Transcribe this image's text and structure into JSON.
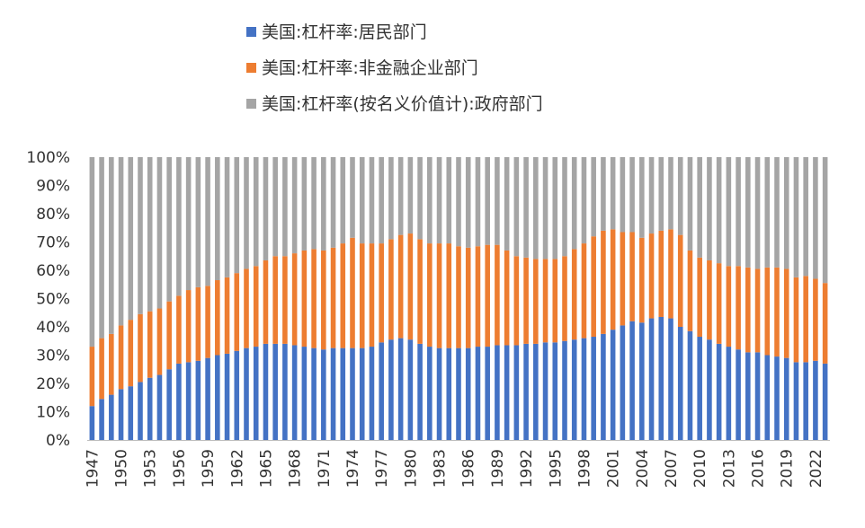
{
  "chart_data": {
    "type": "bar",
    "stacked": true,
    "stack_mode": "percent",
    "x": [
      1947,
      1948,
      1949,
      1950,
      1951,
      1952,
      1953,
      1954,
      1955,
      1956,
      1957,
      1958,
      1959,
      1960,
      1961,
      1962,
      1963,
      1964,
      1965,
      1966,
      1967,
      1968,
      1969,
      1970,
      1971,
      1972,
      1973,
      1974,
      1975,
      1976,
      1977,
      1978,
      1979,
      1980,
      1981,
      1982,
      1983,
      1984,
      1985,
      1986,
      1987,
      1988,
      1989,
      1990,
      1991,
      1992,
      1993,
      1994,
      1995,
      1996,
      1997,
      1998,
      1999,
      2000,
      2001,
      2002,
      2003,
      2004,
      2005,
      2006,
      2007,
      2008,
      2009,
      2010,
      2011,
      2012,
      2013,
      2014,
      2015,
      2016,
      2017,
      2018,
      2019,
      2020,
      2021,
      2022,
      2023
    ],
    "x_tick_labels": [
      "1947",
      "1950",
      "1953",
      "1956",
      "1959",
      "1962",
      "1965",
      "1968",
      "1971",
      "1974",
      "1977",
      "1980",
      "1983",
      "1986",
      "1989",
      "1992",
      "1995",
      "1998",
      "2001",
      "2004",
      "2007",
      "2010",
      "2013",
      "2016",
      "2019",
      "2022"
    ],
    "series": [
      {
        "name": "美国:杠杆率:居民部门",
        "color": "#4472C4",
        "values": [
          12,
          14.5,
          16,
          18,
          19,
          20.5,
          22,
          23,
          25,
          27,
          27.5,
          28,
          29,
          30,
          30.5,
          31.5,
          32.5,
          33,
          34,
          34,
          34,
          33.5,
          33,
          32.5,
          32,
          32.5,
          32.5,
          32.5,
          32.5,
          33,
          34.5,
          35.5,
          36,
          35.5,
          34,
          33,
          32.5,
          32.5,
          32.5,
          32.5,
          33,
          33,
          33.5,
          33.5,
          33.5,
          34,
          34,
          34.5,
          34.5,
          35,
          35.5,
          36,
          36.5,
          37.5,
          39,
          40.5,
          42,
          41.5,
          43,
          43.5,
          43,
          40,
          38.5,
          36.5,
          35.5,
          34,
          33,
          32,
          31,
          31,
          30,
          29.5,
          29,
          27.5,
          27.5,
          28,
          27
        ]
      },
      {
        "name": "美国:杠杆率:非金融企业部门",
        "color": "#ED7D31",
        "values": [
          21,
          21.5,
          21.5,
          22.5,
          23.5,
          24,
          23.5,
          23.5,
          24,
          24,
          25.5,
          26,
          25.5,
          26.5,
          27,
          27.5,
          28,
          28.5,
          29.5,
          31,
          31,
          32.5,
          34,
          35,
          35,
          35.5,
          37,
          39,
          37,
          36.5,
          35,
          35.5,
          36.5,
          37.5,
          37,
          36.5,
          37,
          37,
          36,
          35.5,
          35.5,
          36,
          35.5,
          33.5,
          31.5,
          30.5,
          30,
          29.5,
          29.5,
          30,
          32,
          33.5,
          35.5,
          36.5,
          35.5,
          33,
          31.5,
          30,
          30,
          30.5,
          31.5,
          32.5,
          28.5,
          28,
          28,
          28.5,
          28.5,
          29.5,
          30,
          29.5,
          31,
          31.5,
          31.5,
          30,
          30.5,
          29,
          28.5
        ]
      },
      {
        "name": "美国:杠杆率(按名义价值计):政府部门",
        "color": "#A5A5A5",
        "values": [
          67,
          64,
          62.5,
          59.5,
          57.5,
          55.5,
          54.5,
          53.5,
          51,
          49,
          47,
          46,
          45.5,
          43.5,
          42.5,
          41,
          39.5,
          38.5,
          36.5,
          35,
          35,
          34,
          33,
          32.5,
          33,
          32,
          30.5,
          28.5,
          30.5,
          30.5,
          30.5,
          29,
          27.5,
          27,
          29,
          30.5,
          30.5,
          30.5,
          31.5,
          32,
          31.5,
          31,
          31,
          33,
          35,
          35.5,
          36,
          36,
          36,
          35,
          32.5,
          30.5,
          28,
          26,
          25.5,
          26.5,
          26.5,
          28.5,
          27,
          26,
          25.5,
          27.5,
          33,
          35.5,
          36.5,
          37.5,
          38.5,
          38.5,
          39,
          39.5,
          39,
          39,
          39.5,
          42.5,
          42,
          43,
          44.5
        ]
      }
    ],
    "y_tick_labels": [
      "0%",
      "10%",
      "20%",
      "30%",
      "40%",
      "50%",
      "60%",
      "70%",
      "80%",
      "90%",
      "100%"
    ],
    "ylim": [
      0,
      100
    ],
    "legend_position": "top",
    "grid": false
  }
}
